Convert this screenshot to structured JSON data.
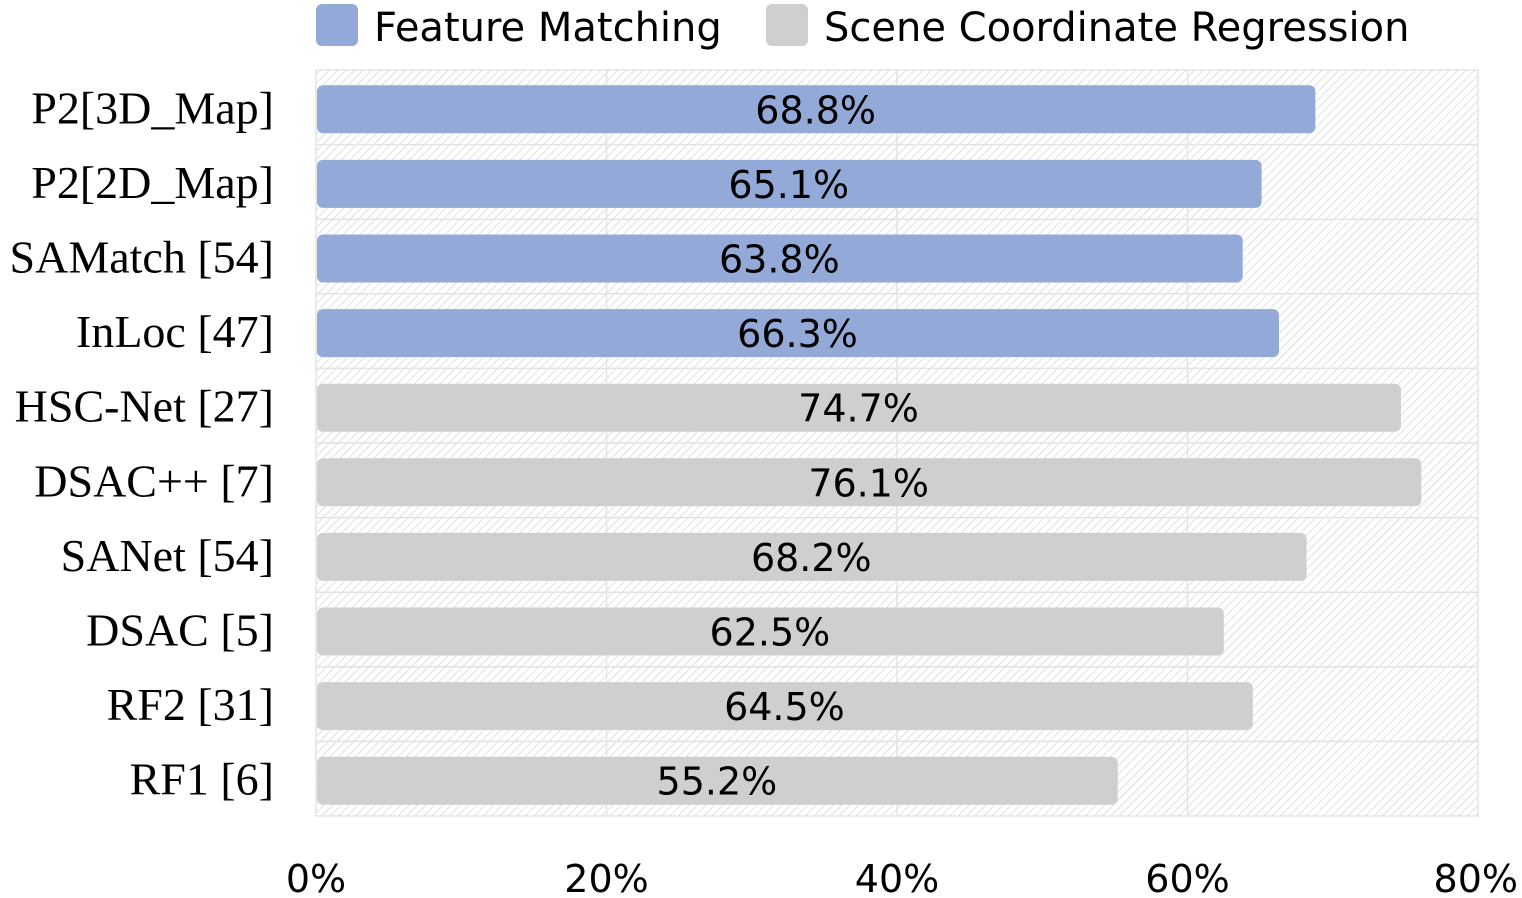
{
  "chart_data": {
    "type": "bar",
    "orientation": "horizontal",
    "categories": [
      "P2[3D_Map]",
      "P2[2D_Map]",
      "SAMatch [54]",
      "InLoc [47]",
      "HSC-Net [27]",
      "DSAC++ [7]",
      "SANet [54]",
      "DSAC [5]",
      "RF2 [31]",
      "RF1 [6]"
    ],
    "values": [
      68.8,
      65.1,
      63.8,
      66.3,
      74.7,
      76.1,
      68.2,
      62.5,
      64.5,
      55.2
    ],
    "value_labels": [
      "68.8%",
      "65.1%",
      "63.8%",
      "66.3%",
      "74.7%",
      "76.1%",
      "68.2%",
      "62.5%",
      "64.5%",
      "55.2%"
    ],
    "groups": [
      "Feature Matching",
      "Feature Matching",
      "Feature Matching",
      "Feature Matching",
      "Scene Coordinate Regression",
      "Scene Coordinate Regression",
      "Scene Coordinate Regression",
      "Scene Coordinate Regression",
      "Scene Coordinate Regression",
      "Scene Coordinate Regression"
    ],
    "legend": [
      {
        "name": "Feature Matching",
        "color": "#93a9d8"
      },
      {
        "name": "Scene Coordinate Regression",
        "color": "#d0cfcf"
      }
    ],
    "legend_position": "top",
    "xlim": [
      0,
      80
    ],
    "xticks": [
      0,
      20,
      40,
      60,
      80
    ],
    "xtick_labels": [
      "0%",
      "20%",
      "40%",
      "60%",
      "80%"
    ],
    "grid": true,
    "background_pattern": "diagonal-hatch"
  }
}
